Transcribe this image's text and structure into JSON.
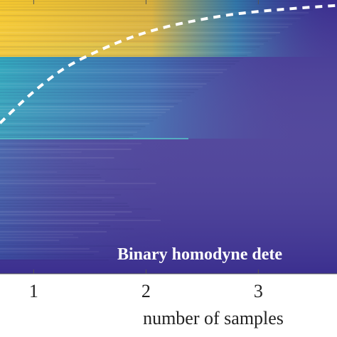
{
  "chart_data": {
    "type": "heatmap",
    "title": "",
    "xlabel": "number of samples",
    "ylabel": "",
    "x_ticks": [
      "1",
      "2",
      "3"
    ],
    "x_tick_values": [
      1,
      2,
      3
    ],
    "xlim": [
      0.7,
      3.7
    ],
    "annotation": "Binary homodyne dete",
    "colormap": {
      "low": "#3b2f8f",
      "mid": "#1f8fb0",
      "high": "#f5c82e"
    },
    "curve": {
      "style": "dashed",
      "color": "#ffffff",
      "x": [
        0.7,
        0.9,
        1.1,
        1.3,
        1.6,
        1.9,
        2.2,
        2.5,
        2.8,
        3.1,
        3.4,
        3.7
      ],
      "y": [
        0.55,
        0.63,
        0.7,
        0.76,
        0.82,
        0.87,
        0.905,
        0.93,
        0.95,
        0.962,
        0.972,
        0.98
      ]
    }
  }
}
